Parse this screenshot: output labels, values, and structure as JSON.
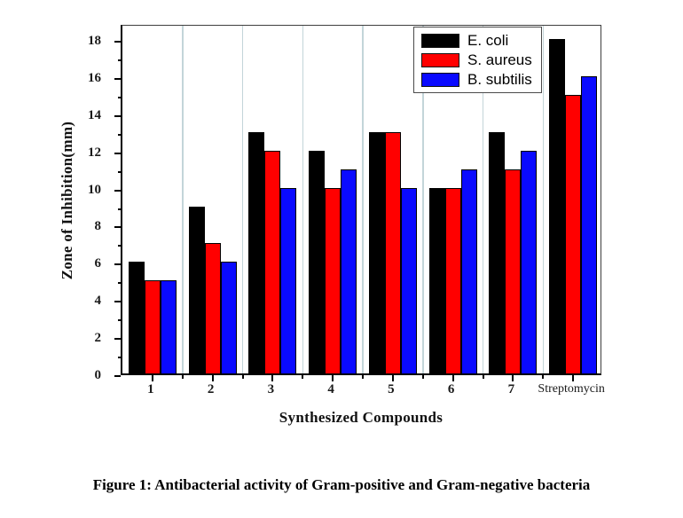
{
  "caption": "Figure 1: Antibacterial activity of Gram-positive and Gram-negative bacteria",
  "chart_data": {
    "type": "bar",
    "categories": [
      "1",
      "2",
      "3",
      "4",
      "5",
      "6",
      "7",
      "Streptomycin"
    ],
    "series": [
      {
        "name": "E. coli",
        "color": "#000000",
        "values": [
          6,
          9,
          13,
          12,
          13,
          10,
          13,
          18
        ]
      },
      {
        "name": "S. aureus",
        "color": "#ff0000",
        "values": [
          5,
          7,
          12,
          10,
          13,
          10,
          11,
          15
        ]
      },
      {
        "name": "B. subtilis",
        "color": "#0a0aff",
        "values": [
          5,
          6,
          10,
          11,
          10,
          11,
          12,
          16
        ]
      }
    ],
    "title": "",
    "xlabel": "Synthesized Compounds",
    "ylabel": "Zone of Inhibition(mm)",
    "ylim": [
      0,
      18.86
    ],
    "yticks": [
      0,
      2,
      4,
      6,
      8,
      10,
      12,
      14,
      16,
      18
    ],
    "grid": "vertical-category-separators",
    "legend_position": "top-inside",
    "colors": {
      "grid": "#c3d5d9",
      "frame": "#3f3f3f",
      "axis": "#000000"
    }
  }
}
